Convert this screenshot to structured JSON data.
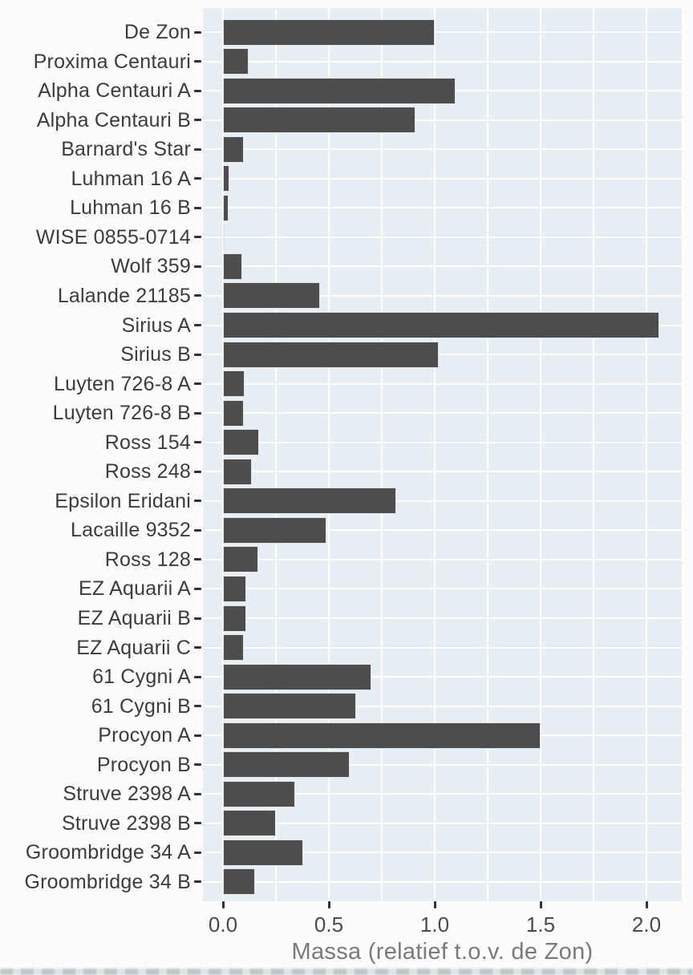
{
  "chart_data": {
    "type": "bar",
    "orientation": "horizontal",
    "title": "",
    "xlabel": "Massa (relatief t.o.v. de Zon)",
    "ylabel": "",
    "xlim": [
      -0.105,
      2.165
    ],
    "x_major_ticks": [
      0.0,
      0.5,
      1.0,
      1.5,
      2.0
    ],
    "x_tick_labels": [
      "0.0",
      "0.5",
      "1.0",
      "1.5",
      "2.0"
    ],
    "x_minor_ticks": [
      0.25,
      0.75,
      1.25,
      1.75
    ],
    "grid": "white major+minor vertical lines and white horizontal category lines on light blue panel",
    "legend_position": "none",
    "categories": [
      "De Zon",
      "Proxima Centauri",
      "Alpha Centauri A",
      "Alpha Centauri B",
      "Barnard's Star",
      "Luhman 16 A",
      "Luhman 16 B",
      "WISE 0855-0714",
      "Wolf 359",
      "Lalande 21185",
      "Sirius A",
      "Sirius B",
      "Luyten 726-8 A",
      "Luyten 726-8 B",
      "Ross 154",
      "Ross 248",
      "Epsilon Eridani",
      "Lacaille 9352",
      "Ross 128",
      "EZ Aquarii A",
      "EZ Aquarii B",
      "EZ Aquarii C",
      "61 Cygni A",
      "61 Cygni B",
      "Procyon A",
      "Procyon B",
      "Struve 2398 A",
      "Struve 2398 B",
      "Groombridge 34 A",
      "Groombridge 34 B"
    ],
    "values": [
      1.0,
      0.12,
      1.1,
      0.91,
      0.1,
      0.032,
      0.027,
      0.005,
      0.09,
      0.46,
      2.06,
      1.02,
      0.102,
      0.1,
      0.17,
      0.136,
      0.82,
      0.49,
      0.168,
      0.11,
      0.11,
      0.1,
      0.7,
      0.63,
      1.5,
      0.6,
      0.34,
      0.25,
      0.38,
      0.15
    ]
  },
  "style": {
    "bar_color": "#4d4d4d",
    "panel_bg": "#e8eff4",
    "grid_color": "#ffffff",
    "tick_color": "#333333",
    "category_label_color": "#3c3c3c",
    "x_tick_label_color": "#4a4a4a",
    "axis_title_color": "#7a7a7a"
  }
}
